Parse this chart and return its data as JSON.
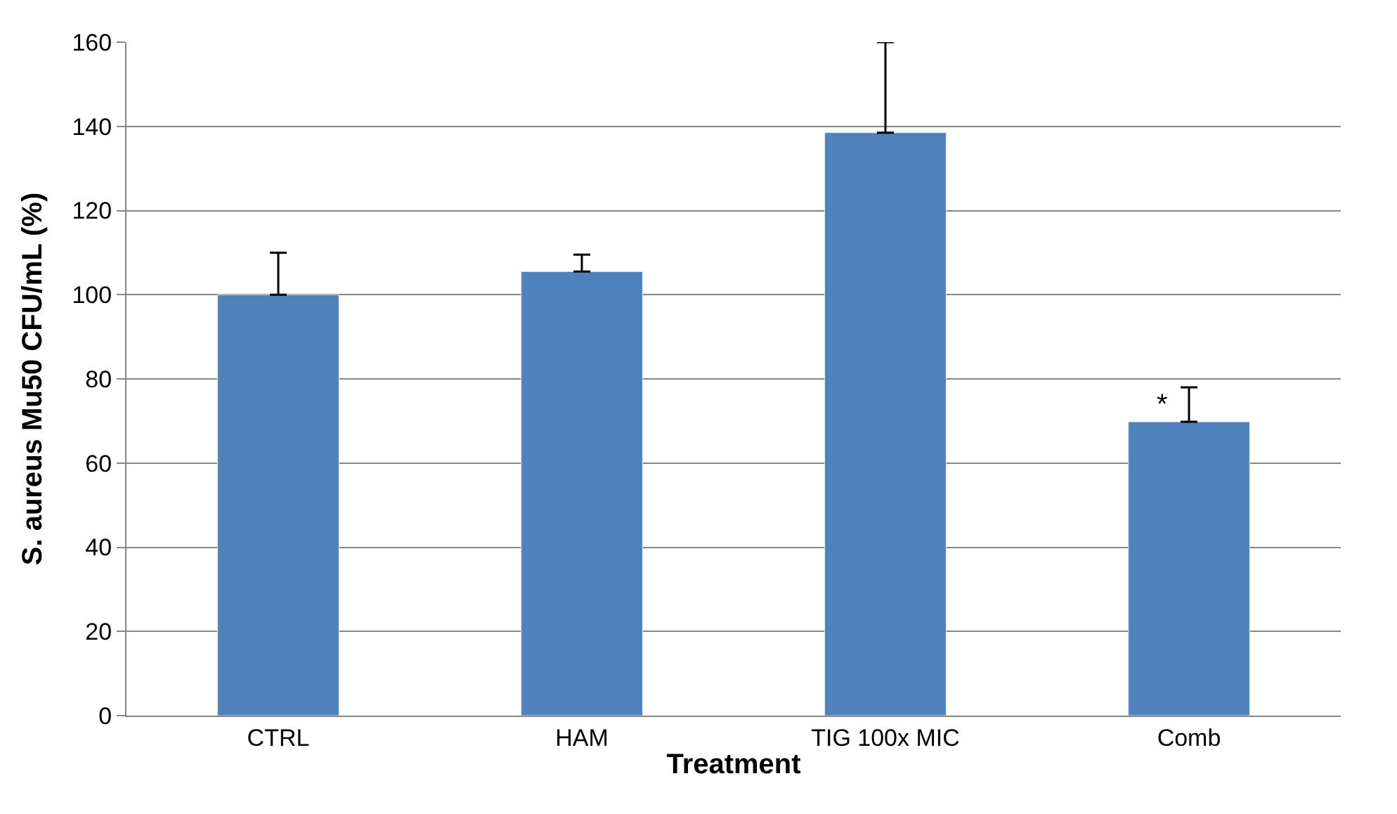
{
  "chart_data": {
    "type": "bar",
    "xlabel": "Treatment",
    "ylabel": "S. aureus Mu50 CFU/mL (%)",
    "categories": [
      "CTRL",
      "HAM",
      "TIG 100x MIC",
      "Comb"
    ],
    "values": [
      100,
      105.5,
      138.5,
      69.8
    ],
    "errors": [
      [
        100,
        110
      ],
      [
        105.5,
        109.5
      ],
      [
        138.5,
        160
      ],
      [
        69.8,
        78
      ]
    ],
    "color": "#4f81bd",
    "ylim": [
      0,
      160
    ],
    "yticks": [
      0,
      20,
      40,
      60,
      80,
      100,
      120,
      140,
      160
    ],
    "grid": "y",
    "annotations": [
      "*"
    ]
  }
}
